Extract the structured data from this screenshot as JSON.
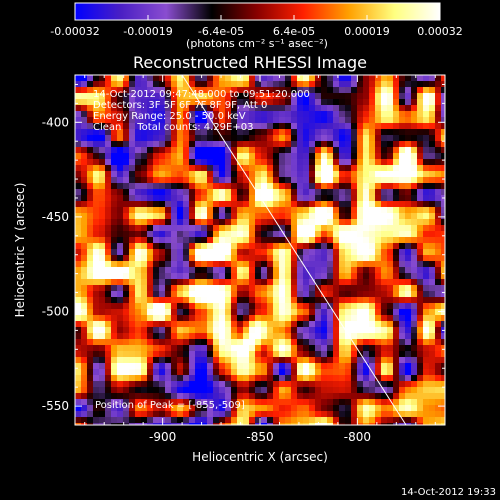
{
  "chart_data": {
    "type": "heatmap",
    "title": "Reconstructed RHESSI Image",
    "xlabel": "Heliocentric X (arcsec)",
    "ylabel": "Heliocentric Y (arcsec)",
    "xlim": [
      -945,
      -755
    ],
    "ylim": [
      -560,
      -375
    ],
    "x_ticks": [
      -900,
      -850,
      -800
    ],
    "x_tick_labels": [
      "-900",
      "-850",
      "-800"
    ],
    "y_ticks": [
      -400,
      -450,
      -500,
      -550
    ],
    "y_tick_labels": [
      "-400",
      "-450",
      "-500",
      "-550"
    ],
    "colorbar": {
      "min": -0.00032,
      "max": 0.00032,
      "tick_labels": [
        "-0.00032",
        "-0.00019",
        "-6.4e-05",
        "6.4e-05",
        "0.00019",
        "0.00032"
      ],
      "unit_label": "(photons cm⁻² s⁻¹ asec⁻²)",
      "colors": [
        "#0000ff",
        "#4a1fc4",
        "#8a4dd0",
        "#000000",
        "#8a0000",
        "#ff2000",
        "#ffa000",
        "#ffff80",
        "#ffffff"
      ]
    },
    "annotations": [
      "14-Oct-2012 09:47:48.000 to 09:51:20.000",
      "Detectors: 3F 5F 6F 7F 8F 9F, Att 0",
      "Energy Range: 25.0 - 50.0 keV",
      "Clean     Total counts: 4.29E+03"
    ],
    "peak_label": "Position of Peak = [-855,-509]",
    "peak": [
      -855,
      -509
    ],
    "limb_line": [
      [
        -890,
        -375
      ],
      [
        -775,
        -560
      ]
    ],
    "grid": false
  },
  "footer": {
    "timestamp": "14-Oct-2012 19:33"
  }
}
